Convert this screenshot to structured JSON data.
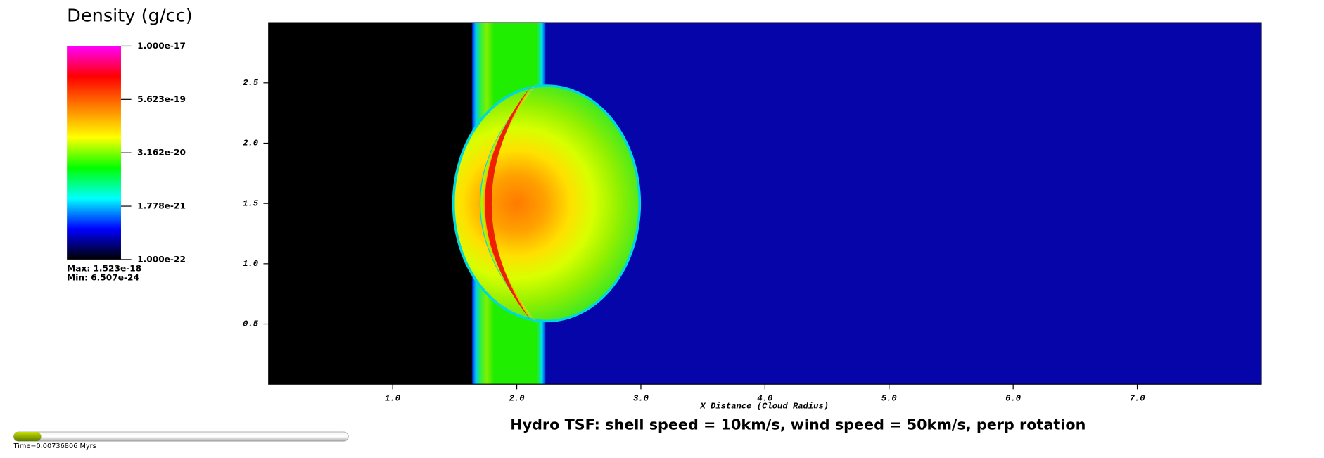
{
  "chart_data": {
    "type": "pseudocolor",
    "title": "Hydro TSF: shell speed = 10km/s, wind speed = 50km/s, perp rotation",
    "xlabel": "X Distance (Cloud Radius)",
    "xlim": [
      0,
      8
    ],
    "ylim": [
      0,
      3
    ],
    "xticks": [
      {
        "value": 1,
        "label": "1.0"
      },
      {
        "value": 2,
        "label": "2.0"
      },
      {
        "value": 3,
        "label": "3.0"
      },
      {
        "value": 4,
        "label": "4.0"
      },
      {
        "value": 5,
        "label": "5.0"
      },
      {
        "value": 6,
        "label": "6.0"
      },
      {
        "value": 7,
        "label": "7.0"
      }
    ],
    "yticks": [
      0.5,
      {
        "value": 1,
        "label": "1.0"
      },
      1.5,
      {
        "value": 2,
        "label": "2.0"
      },
      2.5
    ],
    "colorbar": {
      "title": "Density (g/cc)",
      "scale": "log",
      "clim": [
        1e-22,
        1e-17
      ],
      "ticks": [
        {
          "value": 1e-17,
          "label": "1.000e-17"
        },
        {
          "value": 5.623e-19,
          "label": "5.623e-19"
        },
        {
          "value": 3.162e-20,
          "label": "3.162e-20"
        },
        {
          "value": 1.778e-21,
          "label": "1.778e-21"
        },
        {
          "value": 1e-22,
          "label": "1.000e-22"
        }
      ],
      "colormap": [
        "#000000",
        "#0000ff",
        "#00ffff",
        "#00ff00",
        "#ffff00",
        "#ff8000",
        "#ff0000",
        "#ff00ff"
      ],
      "max": "Max:  1.523e-18",
      "min": "Min:  6.507e-24"
    },
    "time": "Time=0.00736806 Myrs"
  }
}
